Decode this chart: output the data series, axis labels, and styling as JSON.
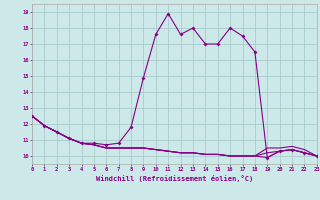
{
  "xlabel": "Windchill (Refroidissement éolien,°C)",
  "xlim": [
    0,
    23
  ],
  "ylim": [
    9.5,
    19.5
  ],
  "yticks": [
    10,
    11,
    12,
    13,
    14,
    15,
    16,
    17,
    18,
    19
  ],
  "xticks": [
    0,
    1,
    2,
    3,
    4,
    5,
    6,
    7,
    8,
    9,
    10,
    11,
    12,
    13,
    14,
    15,
    16,
    17,
    18,
    19,
    20,
    21,
    22,
    23
  ],
  "bg_color": "#cce8e8",
  "line_color": "#880088",
  "grid_color": "#aacccc",
  "spine_color": "#aaaaaa",
  "lines": [
    {
      "x": [
        0,
        1,
        2,
        3,
        4,
        5,
        6,
        7,
        8,
        9,
        10,
        11,
        12,
        13,
        14,
        15,
        16,
        17,
        18,
        19,
        20,
        21,
        22,
        23
      ],
      "y": [
        12.5,
        11.9,
        11.5,
        11.1,
        10.8,
        10.8,
        10.7,
        10.8,
        11.8,
        14.9,
        17.6,
        18.9,
        17.6,
        18.0,
        17.0,
        17.0,
        18.0,
        17.5,
        16.5,
        9.9,
        10.3,
        10.4,
        10.2,
        10.0
      ],
      "marker": true
    },
    {
      "x": [
        0,
        1,
        2,
        3,
        4,
        5,
        6,
        7,
        8,
        9,
        10,
        11,
        12,
        13,
        14,
        15,
        16,
        17,
        18,
        19,
        20,
        21,
        22,
        23
      ],
      "y": [
        12.5,
        11.9,
        11.5,
        11.1,
        10.8,
        10.7,
        10.5,
        10.5,
        10.5,
        10.5,
        10.4,
        10.3,
        10.2,
        10.2,
        10.1,
        10.1,
        10.0,
        10.0,
        10.0,
        9.9,
        10.3,
        10.4,
        10.2,
        10.0
      ],
      "marker": false
    },
    {
      "x": [
        0,
        1,
        2,
        3,
        4,
        5,
        6,
        7,
        8,
        9,
        10,
        11,
        12,
        13,
        14,
        15,
        16,
        17,
        18,
        19,
        20,
        21,
        22,
        23
      ],
      "y": [
        12.5,
        11.9,
        11.5,
        11.1,
        10.8,
        10.7,
        10.5,
        10.5,
        10.5,
        10.5,
        10.4,
        10.3,
        10.2,
        10.2,
        10.1,
        10.1,
        10.0,
        10.0,
        10.0,
        10.2,
        10.3,
        10.4,
        10.2,
        10.0
      ],
      "marker": false
    },
    {
      "x": [
        0,
        1,
        2,
        3,
        4,
        5,
        6,
        7,
        8,
        9,
        10,
        11,
        12,
        13,
        14,
        15,
        16,
        17,
        18,
        19,
        20,
        21,
        22,
        23
      ],
      "y": [
        12.5,
        11.9,
        11.5,
        11.1,
        10.8,
        10.7,
        10.5,
        10.5,
        10.5,
        10.5,
        10.4,
        10.3,
        10.2,
        10.2,
        10.1,
        10.1,
        10.0,
        10.0,
        10.0,
        10.5,
        10.5,
        10.6,
        10.4,
        10.0
      ],
      "marker": false
    }
  ]
}
